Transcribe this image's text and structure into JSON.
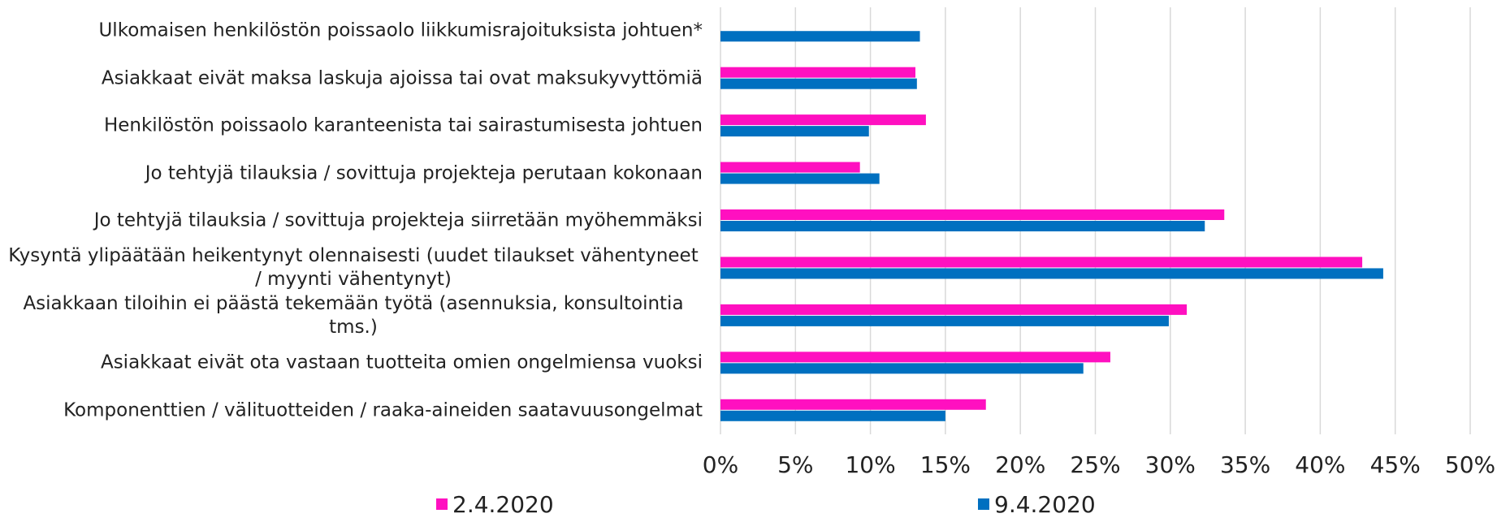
{
  "chart_data": {
    "type": "barh",
    "categories": [
      "Ulkomaisen henkilöstön poissaolo liikkumisrajoituksista johtuen*",
      "Asiakkaat eivät maksa laskuja ajoissa tai ovat maksukyvyttömiä",
      "Henkilöstön poissaolo karanteenista tai sairastumisesta johtuen",
      "Jo tehtyjä tilauksia / sovittuja projekteja perutaan kokonaan",
      "Jo tehtyjä tilauksia / sovittuja projekteja siirretään myöhemmäksi",
      "Kysyntä ylipäätään heikentynyt olennaisesti (uudet tilaukset vähentyneet / myynti vähentynyt)",
      "Asiakkaan tiloihin ei päästä tekemään työtä (asennuksia, konsultointia tms.)",
      "Asiakkaat eivät ota vastaan tuotteita omien ongelmiensa vuoksi",
      "Komponenttien / välituotteiden / raaka-aineiden saatavuusongelmat"
    ],
    "series": [
      {
        "name": "2.4.2020",
        "color": "#ff10c0",
        "values": [
          null,
          13.0,
          13.7,
          9.3,
          33.6,
          42.8,
          31.1,
          26.0,
          17.7
        ]
      },
      {
        "name": "9.4.2020",
        "color": "#0070c0",
        "values": [
          13.3,
          13.1,
          9.9,
          10.6,
          32.3,
          44.2,
          29.9,
          24.2,
          15.0
        ]
      }
    ],
    "xlim": [
      0,
      50
    ],
    "xticks": [
      {
        "value": 0,
        "label": "0%"
      },
      {
        "value": 5,
        "label": "5%"
      },
      {
        "value": 10,
        "label": "10%"
      },
      {
        "value": 15,
        "label": "15%"
      },
      {
        "value": 20,
        "label": "20%"
      },
      {
        "value": 25,
        "label": "25%"
      },
      {
        "value": 30,
        "label": "30%"
      },
      {
        "value": 35,
        "label": "35%"
      },
      {
        "value": 40,
        "label": "40%"
      },
      {
        "value": 45,
        "label": "45%"
      },
      {
        "value": 50,
        "label": "50%"
      }
    ],
    "grid": true,
    "legend": "bottom"
  }
}
